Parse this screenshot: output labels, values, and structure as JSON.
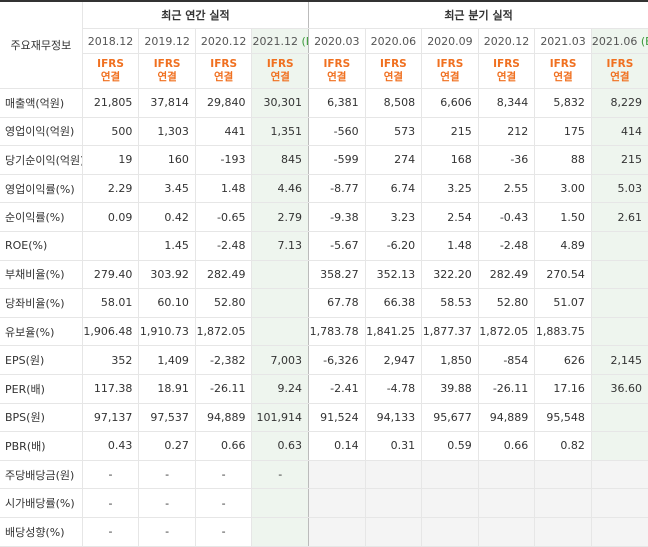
{
  "header": {
    "row_label": "주요재무정보",
    "annual_title": "최근 연간 실적",
    "quarter_title": "최근 분기 실적",
    "periods": [
      {
        "label": "2018.12",
        "est": ""
      },
      {
        "label": "2019.12",
        "est": ""
      },
      {
        "label": "2020.12",
        "est": ""
      },
      {
        "label": "2021.12",
        "est": "(E)"
      },
      {
        "label": "2020.03",
        "est": ""
      },
      {
        "label": "2020.06",
        "est": ""
      },
      {
        "label": "2020.09",
        "est": ""
      },
      {
        "label": "2020.12",
        "est": ""
      },
      {
        "label": "2021.03",
        "est": ""
      },
      {
        "label": "2021.06",
        "est": "(E)"
      }
    ],
    "ifrs_top": "IFRS",
    "ifrs_bottom": "연결"
  },
  "rows": [
    {
      "label": "매출액(억원)",
      "values": [
        "21,805",
        "37,814",
        "29,840",
        "30,301",
        "6,381",
        "8,508",
        "6,606",
        "8,344",
        "5,832",
        "8,229"
      ]
    },
    {
      "label": "영업이익(억원)",
      "values": [
        "500",
        "1,303",
        "441",
        "1,351",
        "-560",
        "573",
        "215",
        "212",
        "175",
        "414"
      ]
    },
    {
      "label": "당기순이익(억원)",
      "values": [
        "19",
        "160",
        "-193",
        "845",
        "-599",
        "274",
        "168",
        "-36",
        "88",
        "215"
      ]
    },
    {
      "label": "영업이익률(%)",
      "values": [
        "2.29",
        "3.45",
        "1.48",
        "4.46",
        "-8.77",
        "6.74",
        "3.25",
        "2.55",
        "3.00",
        "5.03"
      ]
    },
    {
      "label": "순이익률(%)",
      "values": [
        "0.09",
        "0.42",
        "-0.65",
        "2.79",
        "-9.38",
        "3.23",
        "2.54",
        "-0.43",
        "1.50",
        "2.61"
      ]
    },
    {
      "label": "ROE(%)",
      "values": [
        "",
        "1.45",
        "-2.48",
        "7.13",
        "-5.67",
        "-6.20",
        "1.48",
        "-2.48",
        "4.89",
        ""
      ]
    },
    {
      "label": "부채비율(%)",
      "values": [
        "279.40",
        "303.92",
        "282.49",
        "",
        "358.27",
        "352.13",
        "322.20",
        "282.49",
        "270.54",
        ""
      ]
    },
    {
      "label": "당좌비율(%)",
      "values": [
        "58.01",
        "60.10",
        "52.80",
        "",
        "67.78",
        "66.38",
        "58.53",
        "52.80",
        "51.07",
        ""
      ]
    },
    {
      "label": "유보율(%)",
      "values": [
        "1,906.48",
        "1,910.73",
        "1,872.05",
        "",
        "1,783.78",
        "1,841.25",
        "1,877.37",
        "1,872.05",
        "1,883.75",
        ""
      ]
    },
    {
      "label": "EPS(원)",
      "values": [
        "352",
        "1,409",
        "-2,382",
        "7,003",
        "-6,326",
        "2,947",
        "1,850",
        "-854",
        "626",
        "2,145"
      ]
    },
    {
      "label": "PER(배)",
      "values": [
        "117.38",
        "18.91",
        "-26.11",
        "9.24",
        "-2.41",
        "-4.78",
        "39.88",
        "-26.11",
        "17.16",
        "36.60"
      ]
    },
    {
      "label": "BPS(원)",
      "values": [
        "97,137",
        "97,537",
        "94,889",
        "101,914",
        "91,524",
        "94,133",
        "95,677",
        "94,889",
        "95,548",
        ""
      ]
    },
    {
      "label": "PBR(배)",
      "values": [
        "0.43",
        "0.27",
        "0.66",
        "0.63",
        "0.14",
        "0.31",
        "0.59",
        "0.66",
        "0.82",
        ""
      ]
    },
    {
      "label": "주당배당금(원)",
      "values": [
        "-",
        "-",
        "-",
        "-",
        "",
        "",
        "",
        "",
        "",
        ""
      ]
    },
    {
      "label": "시가배당률(%)",
      "values": [
        "-",
        "-",
        "-",
        "",
        "",
        "",
        "",
        "",
        "",
        ""
      ]
    },
    {
      "label": "배당성향(%)",
      "values": [
        "-",
        "-",
        "-",
        "",
        "",
        "",
        "",
        "",
        "",
        ""
      ]
    }
  ],
  "colors": {
    "negative": "#e02020",
    "ifrs": "#f07020",
    "estimate_bg": "#eef5ee",
    "estimate_mark": "#3a9a3a"
  }
}
